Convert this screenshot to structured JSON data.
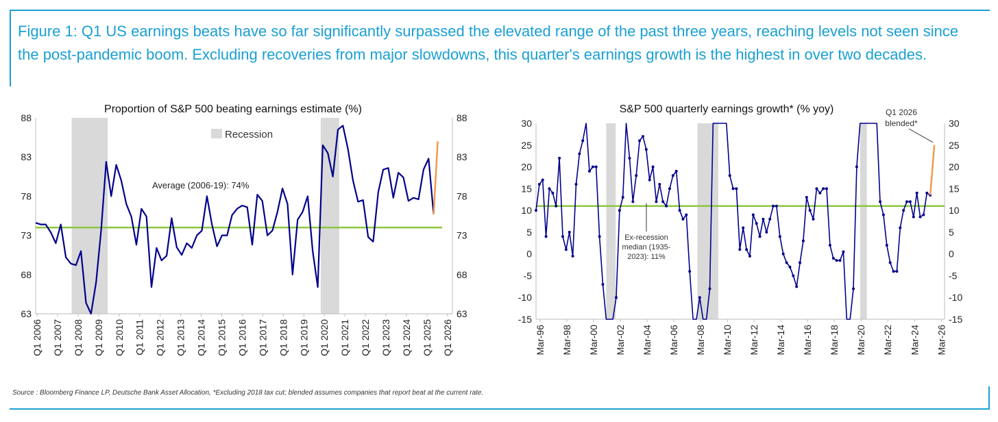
{
  "headline": "Figure 1: Q1 US earnings beats have so far significantly surpassed the elevated range of the past three years, reaching levels not seen since the post-pandemic boom. Excluding recoveries from major slowdowns, this quarter's earnings growth is the highest in over two decades.",
  "source": "Source : Bloomberg Finance LP, Deutsche Bank Asset Allocation, *Excluding 2018 tax cut; blended assumes companies that report beat at the current rate.",
  "colors": {
    "accent": "#1a9fd4",
    "series": "#00008b",
    "highlight": "#f39a4a",
    "average": "#8dc63f",
    "recession": "#d9d9d9"
  },
  "chart_data": [
    {
      "type": "line",
      "title": "Proportion of S&P 500 beating earnings estimate (%)",
      "ylim": [
        63,
        88
      ],
      "yticks": [
        63,
        68,
        73,
        78,
        83,
        88
      ],
      "x_start": 2006.0,
      "x_end": 2026.25,
      "xticks": [
        "Q1 2006",
        "Q1 2007",
        "Q1 2008",
        "Q1 2009",
        "Q1 2010",
        "Q1 2011",
        "Q1 2012",
        "Q1 2013",
        "Q1 2014",
        "Q1 2015",
        "Q1 2016",
        "Q1 2017",
        "Q1 2018",
        "Q1 2019",
        "Q1 2020",
        "Q1 2021",
        "Q1 2022",
        "Q1 2023",
        "Q1 2024",
        "Q1 2025",
        "Q1 2026"
      ],
      "legend": "Recession",
      "recessions": [
        [
          2007.75,
          2009.5
        ],
        [
          2019.85,
          2020.75
        ]
      ],
      "average": {
        "label": "Average (2006-19): 74%",
        "value": 74
      },
      "values": [
        74.6,
        74.4,
        74.4,
        73.4,
        72,
        74.4,
        70.2,
        69.4,
        69.2,
        71,
        64.4,
        63,
        67,
        73.6,
        82.4,
        78,
        82,
        80,
        77,
        75.4,
        71.8,
        76.4,
        75.4,
        66.4,
        71.4,
        69.8,
        70.4,
        75.2,
        71.5,
        70.5,
        72,
        71.4,
        73,
        73.6,
        78,
        74.4,
        71.6,
        73,
        73,
        75.6,
        76.4,
        76.8,
        76.6,
        71.8,
        78.2,
        77.4,
        73,
        73.6,
        76,
        79,
        77,
        68,
        75,
        76,
        78,
        71,
        66.4,
        84.5,
        83.5,
        80.5,
        86.5,
        87,
        84,
        80,
        77.3,
        77.5,
        72.8,
        72.2,
        78.5,
        81.4,
        81.6,
        77.8,
        81,
        80.4,
        77.4,
        77.8,
        77.6,
        81.4,
        82.8,
        75.7
      ],
      "highlight": {
        "from": 75.7,
        "to": 85
      }
    },
    {
      "type": "line",
      "title": "S&P 500 quarterly earnings growth* (% yoy)",
      "ylim": [
        -15,
        30
      ],
      "yticks": [
        -15,
        -10,
        -5,
        0,
        5,
        10,
        15,
        20,
        25,
        30
      ],
      "x_start": 1996.0,
      "x_end": 2026.25,
      "xticks": [
        "Mar-96",
        "Mar-98",
        "Mar-00",
        "Mar-02",
        "Mar-04",
        "Mar-06",
        "Mar-08",
        "Mar-10",
        "Mar-12",
        "Mar-14",
        "Mar-16",
        "Mar-18",
        "Mar-20",
        "Mar-22",
        "Mar-24",
        "Mar-26"
      ],
      "recessions": [
        [
          2001.2,
          2001.9
        ],
        [
          2007.95,
          2009.5
        ],
        [
          2020.0,
          2020.5
        ]
      ],
      "median": {
        "label": "Ex-recession median (1935-2023): 11%",
        "value": 11
      },
      "values": [
        10,
        16,
        17,
        4,
        15,
        14,
        11,
        22,
        4,
        1,
        5,
        -0.5,
        16,
        23,
        26,
        30,
        19,
        20,
        20,
        4,
        -7,
        -15,
        -15,
        -15,
        -10,
        10,
        13,
        30,
        22,
        12,
        18,
        26,
        27,
        24,
        17,
        20,
        12,
        16,
        12,
        11,
        15,
        18,
        19,
        10,
        8,
        9,
        -4,
        -15,
        -15,
        -10,
        -15,
        -15,
        -8,
        30,
        30,
        30,
        30,
        30,
        18,
        15,
        15,
        1,
        6,
        1,
        -0.5,
        9,
        7,
        4,
        8,
        5,
        8,
        11,
        11,
        4,
        0,
        -2,
        -3,
        -5,
        -7.5,
        -2,
        3,
        13,
        10,
        8,
        15,
        14,
        15,
        15,
        2,
        -1,
        -1.5,
        -1.5,
        0.5,
        -15,
        -15,
        -8,
        20,
        30,
        30,
        30,
        30,
        30,
        30,
        12,
        9,
        2,
        -2,
        -4,
        -4,
        6,
        10,
        12,
        12,
        8.5,
        14,
        8.5,
        9,
        14,
        13.5
      ],
      "highlight": {
        "from": 13.5,
        "to": 25
      },
      "annotation": [
        "Q1 2026",
        "blended*"
      ]
    }
  ]
}
